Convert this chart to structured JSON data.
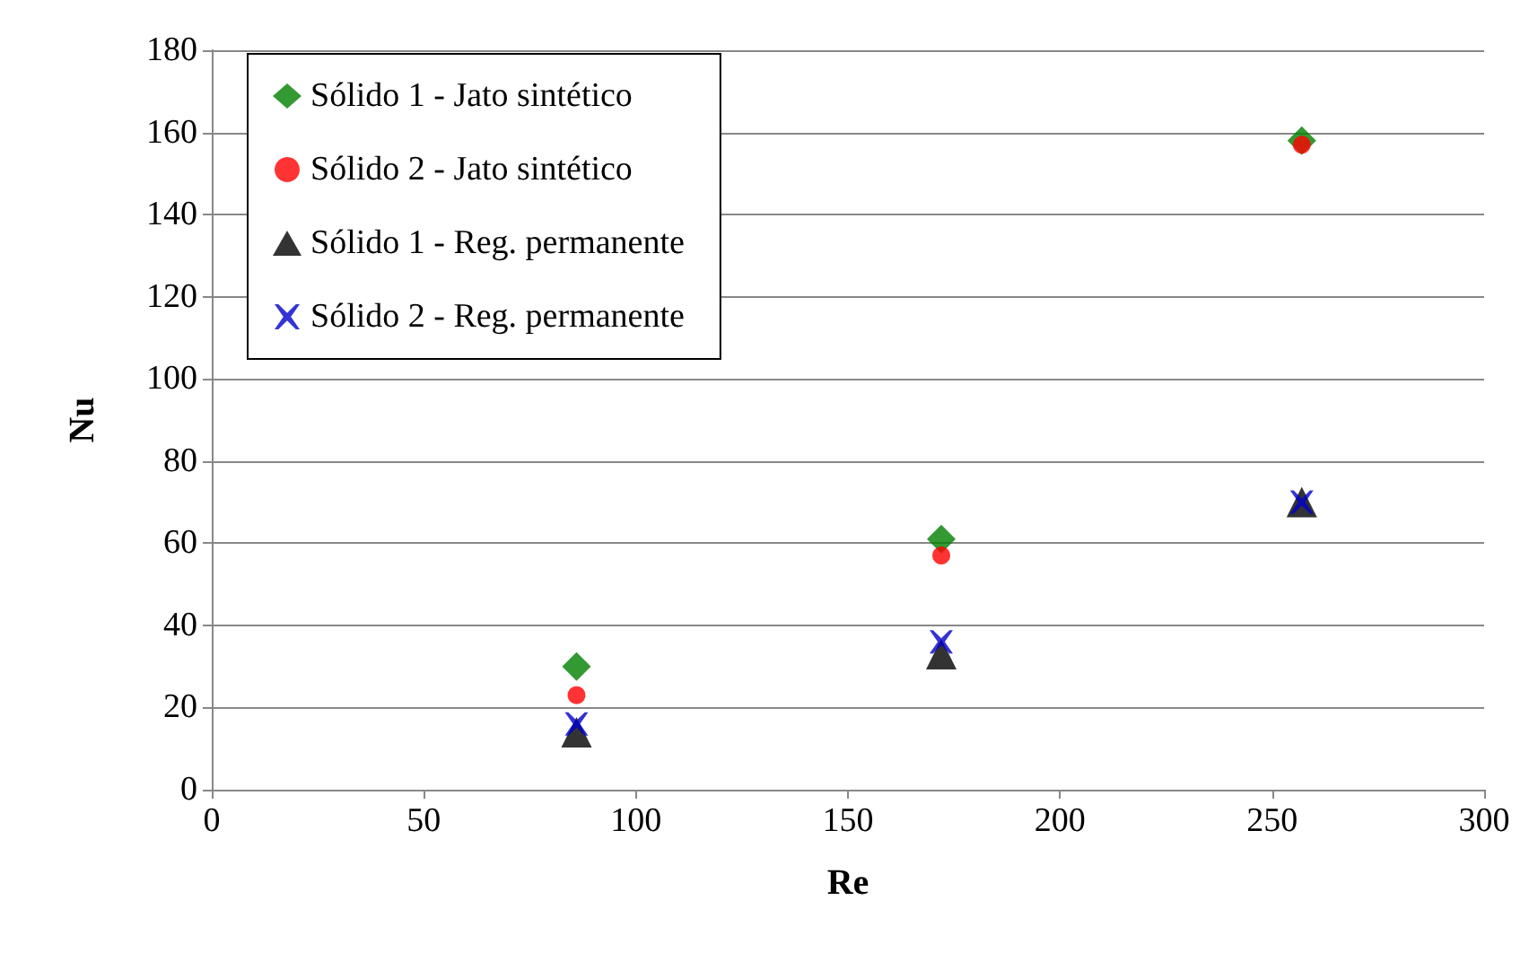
{
  "chart_data": {
    "type": "scatter",
    "xlabel": "Re",
    "ylabel": "Nu",
    "x": [
      86,
      172,
      257
    ],
    "series": [
      {
        "name": "Sólido 1 - Jato sintético",
        "color": "#008000",
        "marker": "diamond",
        "values": [
          30,
          61,
          158
        ]
      },
      {
        "name": "Sólido 2 - Jato sintético",
        "color": "#ff0000",
        "marker": "circle",
        "values": [
          23,
          57,
          157
        ]
      },
      {
        "name": "Sólido 1 - Reg. permanente",
        "color": "#000000",
        "marker": "triangle",
        "values": [
          14,
          33,
          70
        ]
      },
      {
        "name": "Sólido 2 - Reg. permanente",
        "color": "#0000cc",
        "marker": "cross",
        "values": [
          16,
          36,
          70
        ]
      }
    ],
    "xlim": [
      0,
      300
    ],
    "xticks": [
      0,
      50,
      100,
      150,
      200,
      250,
      300
    ],
    "ylim": [
      0,
      180
    ],
    "yticks": [
      0,
      20,
      40,
      60,
      80,
      100,
      120,
      140,
      160,
      180
    ],
    "grid": "y",
    "legend": "top left"
  }
}
